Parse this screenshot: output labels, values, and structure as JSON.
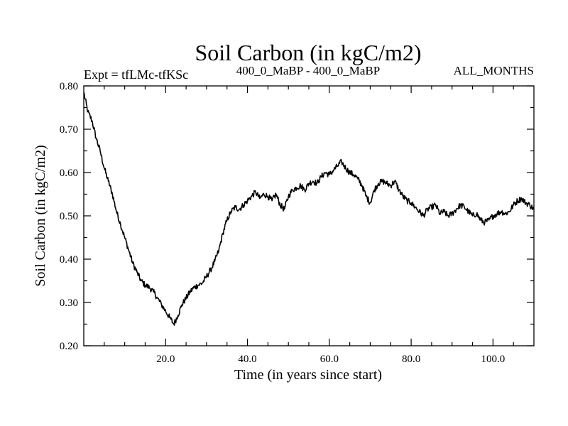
{
  "chart_data": {
    "type": "line",
    "title": "Soil Carbon (in kgC/m2)",
    "subtitle_left": "Expt = tfLMc-tfKSc",
    "subtitle_center": "400_0_MaBP - 400_0_MaBP",
    "subtitle_right": "ALL_MONTHS",
    "xlabel": "Time (in years since start)",
    "ylabel": "Soil Carbon (in kgC/m2)",
    "xlim": [
      0,
      110
    ],
    "ylim": [
      0.2,
      0.8
    ],
    "xticks": [
      20,
      40,
      60,
      80,
      100
    ],
    "xtick_labels": [
      "20.0",
      "40.0",
      "60.0",
      "80.0",
      "100.0"
    ],
    "yticks": [
      0.2,
      0.3,
      0.4,
      0.5,
      0.6,
      0.7,
      0.8
    ],
    "ytick_labels": [
      "0.20",
      "0.30",
      "0.40",
      "0.50",
      "0.60",
      "0.70",
      "0.80"
    ],
    "grid": false,
    "series": [
      {
        "name": "Soil Carbon",
        "color": "#000000",
        "x": [
          0,
          1,
          2,
          3,
          4,
          5,
          6,
          7,
          8,
          9,
          10,
          11,
          12,
          13,
          14,
          15,
          16,
          17,
          18,
          19,
          20,
          21,
          22,
          23,
          24,
          25,
          26,
          27,
          28,
          29,
          30,
          31,
          32,
          33,
          34,
          35,
          36,
          37,
          38,
          39,
          40,
          41,
          42,
          43,
          44,
          45,
          46,
          47,
          48,
          49,
          50,
          51,
          52,
          53,
          54,
          55,
          56,
          57,
          58,
          59,
          60,
          61,
          62,
          63,
          64,
          65,
          66,
          67,
          68,
          69,
          70,
          71,
          72,
          73,
          74,
          75,
          76,
          77,
          78,
          79,
          80,
          81,
          82,
          83,
          84,
          85,
          86,
          87,
          88,
          89,
          90,
          91,
          92,
          93,
          94,
          95,
          96,
          97,
          98,
          99,
          100,
          101,
          102,
          103,
          104,
          105,
          106,
          107,
          108,
          109,
          110
        ],
        "values": [
          0.785,
          0.74,
          0.72,
          0.68,
          0.65,
          0.61,
          0.58,
          0.55,
          0.51,
          0.48,
          0.45,
          0.42,
          0.39,
          0.37,
          0.35,
          0.34,
          0.335,
          0.325,
          0.31,
          0.295,
          0.28,
          0.265,
          0.25,
          0.27,
          0.295,
          0.31,
          0.325,
          0.335,
          0.34,
          0.345,
          0.36,
          0.375,
          0.395,
          0.42,
          0.46,
          0.49,
          0.51,
          0.52,
          0.515,
          0.525,
          0.535,
          0.545,
          0.555,
          0.54,
          0.55,
          0.545,
          0.535,
          0.55,
          0.525,
          0.515,
          0.545,
          0.56,
          0.565,
          0.57,
          0.56,
          0.575,
          0.58,
          0.575,
          0.59,
          0.6,
          0.595,
          0.605,
          0.615,
          0.625,
          0.61,
          0.6,
          0.595,
          0.585,
          0.57,
          0.545,
          0.53,
          0.56,
          0.575,
          0.58,
          0.575,
          0.57,
          0.58,
          0.56,
          0.545,
          0.535,
          0.53,
          0.52,
          0.51,
          0.5,
          0.515,
          0.52,
          0.525,
          0.505,
          0.51,
          0.5,
          0.505,
          0.515,
          0.525,
          0.52,
          0.51,
          0.5,
          0.505,
          0.49,
          0.485,
          0.49,
          0.5,
          0.505,
          0.51,
          0.505,
          0.51,
          0.525,
          0.535,
          0.54,
          0.53,
          0.525,
          0.515
        ]
      }
    ]
  }
}
